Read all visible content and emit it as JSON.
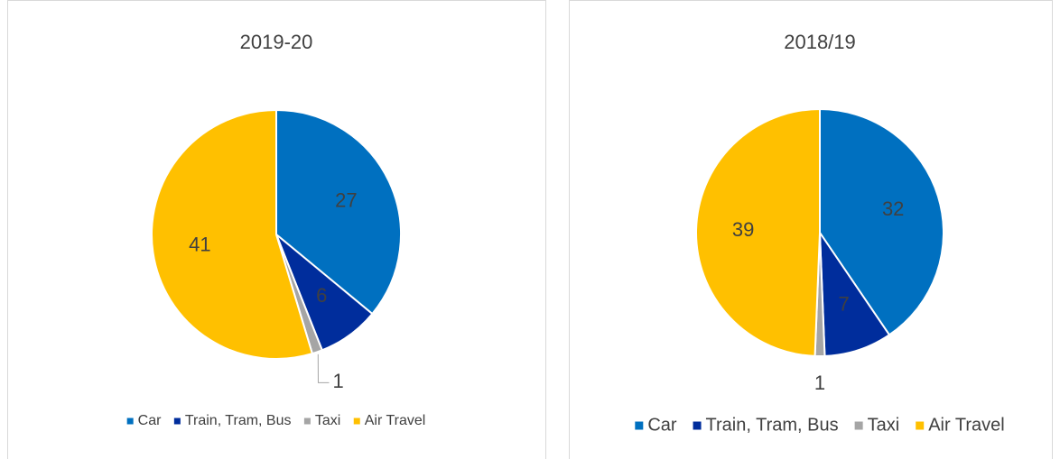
{
  "chart_data": [
    {
      "type": "pie",
      "title": "2019-20",
      "categories": [
        "Car",
        "Train, Tram, Bus",
        "Taxi",
        "Air Travel"
      ],
      "values": [
        27,
        6,
        1,
        41
      ],
      "colors": [
        "#0070c0",
        "#002d9c",
        "#a5a5a5",
        "#ffc000"
      ]
    },
    {
      "type": "pie",
      "title": "2018/19",
      "categories": [
        "Car",
        "Train, Tram, Bus",
        "Taxi",
        "Air Travel"
      ],
      "values": [
        32,
        7,
        1,
        39
      ],
      "colors": [
        "#0070c0",
        "#002d9c",
        "#a5a5a5",
        "#ffc000"
      ]
    }
  ]
}
